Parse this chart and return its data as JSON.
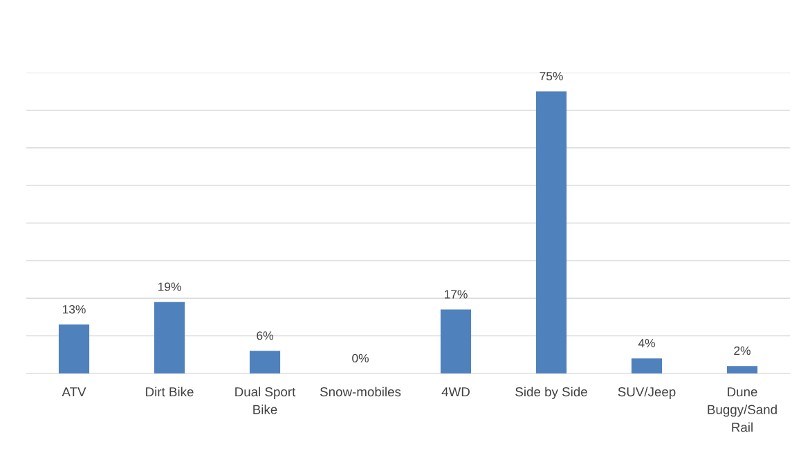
{
  "chart_data": {
    "type": "bar",
    "categories": [
      "ATV",
      "Dirt Bike",
      "Dual Sport Bike",
      "Snow-mobiles",
      "4WD",
      "Side by Side",
      "SUV/Jeep",
      "Dune Buggy/Sand Rail"
    ],
    "values": [
      13,
      19,
      6,
      0,
      17,
      75,
      4,
      2
    ],
    "value_labels": [
      "13%",
      "19%",
      "6%",
      "0%",
      "17%",
      "75%",
      "4%",
      "2%"
    ],
    "color": "#4f81bd",
    "ylim": [
      0,
      80
    ],
    "yticks": [
      {
        "value": 0,
        "label": null
      },
      {
        "value": 10,
        "label": null
      },
      {
        "value": 20,
        "label": null
      },
      {
        "value": 30,
        "label": null
      },
      {
        "value": 40,
        "label": null
      },
      {
        "value": 50,
        "label": null
      },
      {
        "value": 60,
        "label": null
      },
      {
        "value": 70,
        "label": null
      },
      {
        "value": 80,
        "label": null
      }
    ],
    "grid": "y",
    "tick_labels": "x"
  }
}
